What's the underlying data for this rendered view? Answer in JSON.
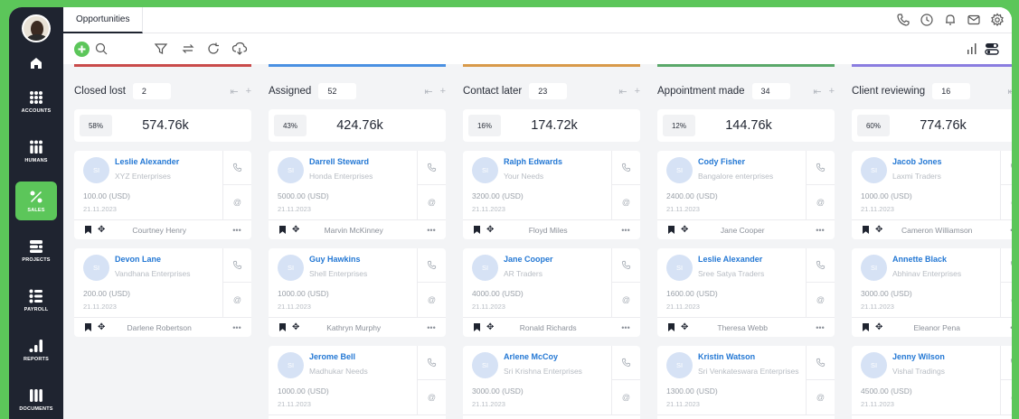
{
  "sidebar": {
    "items": [
      {
        "name": "accounts",
        "label": "ACCOUNTS",
        "icon": "accounts-icon"
      },
      {
        "name": "humans",
        "label": "HUMANS",
        "icon": "humans-icon"
      },
      {
        "name": "sales",
        "label": "SALES",
        "icon": "sales-icon",
        "active": true
      },
      {
        "name": "projects",
        "label": "PROJECTS",
        "icon": "projects-icon"
      },
      {
        "name": "payroll",
        "label": "PAYROLL",
        "icon": "payroll-icon"
      },
      {
        "name": "reports",
        "label": "REPORTS",
        "icon": "reports-icon"
      },
      {
        "name": "documents",
        "label": "DOCUMENTS",
        "icon": "documents-icon"
      }
    ]
  },
  "header": {
    "tab": "Opportunities"
  },
  "colors": {
    "accent": "#5cc65a",
    "sidebar": "#1f2430",
    "link": "#2478d4",
    "closed_lost": "#c94b4b",
    "assigned": "#4a90e2",
    "contact_later": "#d89a4a",
    "appointment_made": "#5aa86a",
    "client_reviewing": "#8a7de0"
  },
  "columns": [
    {
      "title": "Closed lost",
      "count": "2",
      "percent": "58%",
      "total": "574.76k",
      "color": "#c94b4b",
      "cards": [
        {
          "initials": "SI",
          "name": "Leslie Alexander",
          "company": "XYZ Enterprises",
          "amount": "100.00 (USD)",
          "date": "21.11.2023",
          "owner": "Courtney Henry"
        },
        {
          "initials": "SI",
          "name": "Devon Lane",
          "company": "Vandhana Enterprises",
          "amount": "200.00 (USD)",
          "date": "21.11.2023",
          "owner": "Darlene Robertson"
        }
      ]
    },
    {
      "title": "Assigned",
      "count": "52",
      "percent": "43%",
      "total": "424.76k",
      "color": "#4a90e2",
      "cards": [
        {
          "initials": "SI",
          "name": "Darrell Steward",
          "company": "Honda Enterprises",
          "amount": "5000.00 (USD)",
          "date": "21.11.2023",
          "owner": "Marvin McKinney"
        },
        {
          "initials": "SI",
          "name": "Guy Hawkins",
          "company": "Shell Enterprises",
          "amount": "1000.00 (USD)",
          "date": "21.11.2023",
          "owner": "Kathryn Murphy"
        },
        {
          "initials": "SI",
          "name": "Jerome Bell",
          "company": "Madhukar  Needs",
          "amount": "1000.00 (USD)",
          "date": "21.11.2023",
          "owner": ""
        }
      ]
    },
    {
      "title": "Contact later",
      "count": "23",
      "percent": "16%",
      "total": "174.72k",
      "color": "#d89a4a",
      "cards": [
        {
          "initials": "SI",
          "name": "Ralph Edwards",
          "company": "Your  Needs",
          "amount": "3200.00 (USD)",
          "date": "21.11.2023",
          "owner": "Floyd Miles"
        },
        {
          "initials": "SI",
          "name": "Jane Cooper",
          "company": "AR Traders",
          "amount": "4000.00 (USD)",
          "date": "21.11.2023",
          "owner": "Ronald Richards"
        },
        {
          "initials": "SI",
          "name": "Arlene McCoy",
          "company": "Sri Krishna Enterprises",
          "amount": "3000.00 (USD)",
          "date": "21.11.2023",
          "owner": ""
        }
      ]
    },
    {
      "title": "Appointment made",
      "count": "34",
      "percent": "12%",
      "total": "144.76k",
      "color": "#5aa86a",
      "cards": [
        {
          "initials": "SI",
          "name": "Cody Fisher",
          "company": "Bangalore enterprises",
          "amount": "2400.00 (USD)",
          "date": "21.11.2023",
          "owner": "Jane Cooper"
        },
        {
          "initials": "SI",
          "name": "Leslie Alexander",
          "company": "Sree Satya Traders",
          "amount": "1600.00 (USD)",
          "date": "21.11.2023",
          "owner": "Theresa Webb"
        },
        {
          "initials": "SI",
          "name": "Kristin Watson",
          "company": "Sri Venkateswara Enterprises",
          "amount": "1300.00 (USD)",
          "date": "21.11.2023",
          "owner": ""
        }
      ]
    },
    {
      "title": "Client reviewing",
      "count": "16",
      "percent": "60%",
      "total": "774.76k",
      "color": "#8a7de0",
      "cards": [
        {
          "initials": "SI",
          "name": "Jacob Jones",
          "company": "Laxmi Traders",
          "amount": "1000.00 (USD)",
          "date": "21.11.2023",
          "owner": "Cameron Williamson"
        },
        {
          "initials": "SI",
          "name": "Annette Black",
          "company": "Abhinav Enterprises",
          "amount": "3000.00 (USD)",
          "date": "21.11.2023",
          "owner": "Eleanor Pena"
        },
        {
          "initials": "SI",
          "name": "Jenny Wilson",
          "company": "Vishal Tradings",
          "amount": "4500.00 (USD)",
          "date": "21.11.2023",
          "owner": ""
        }
      ]
    }
  ]
}
